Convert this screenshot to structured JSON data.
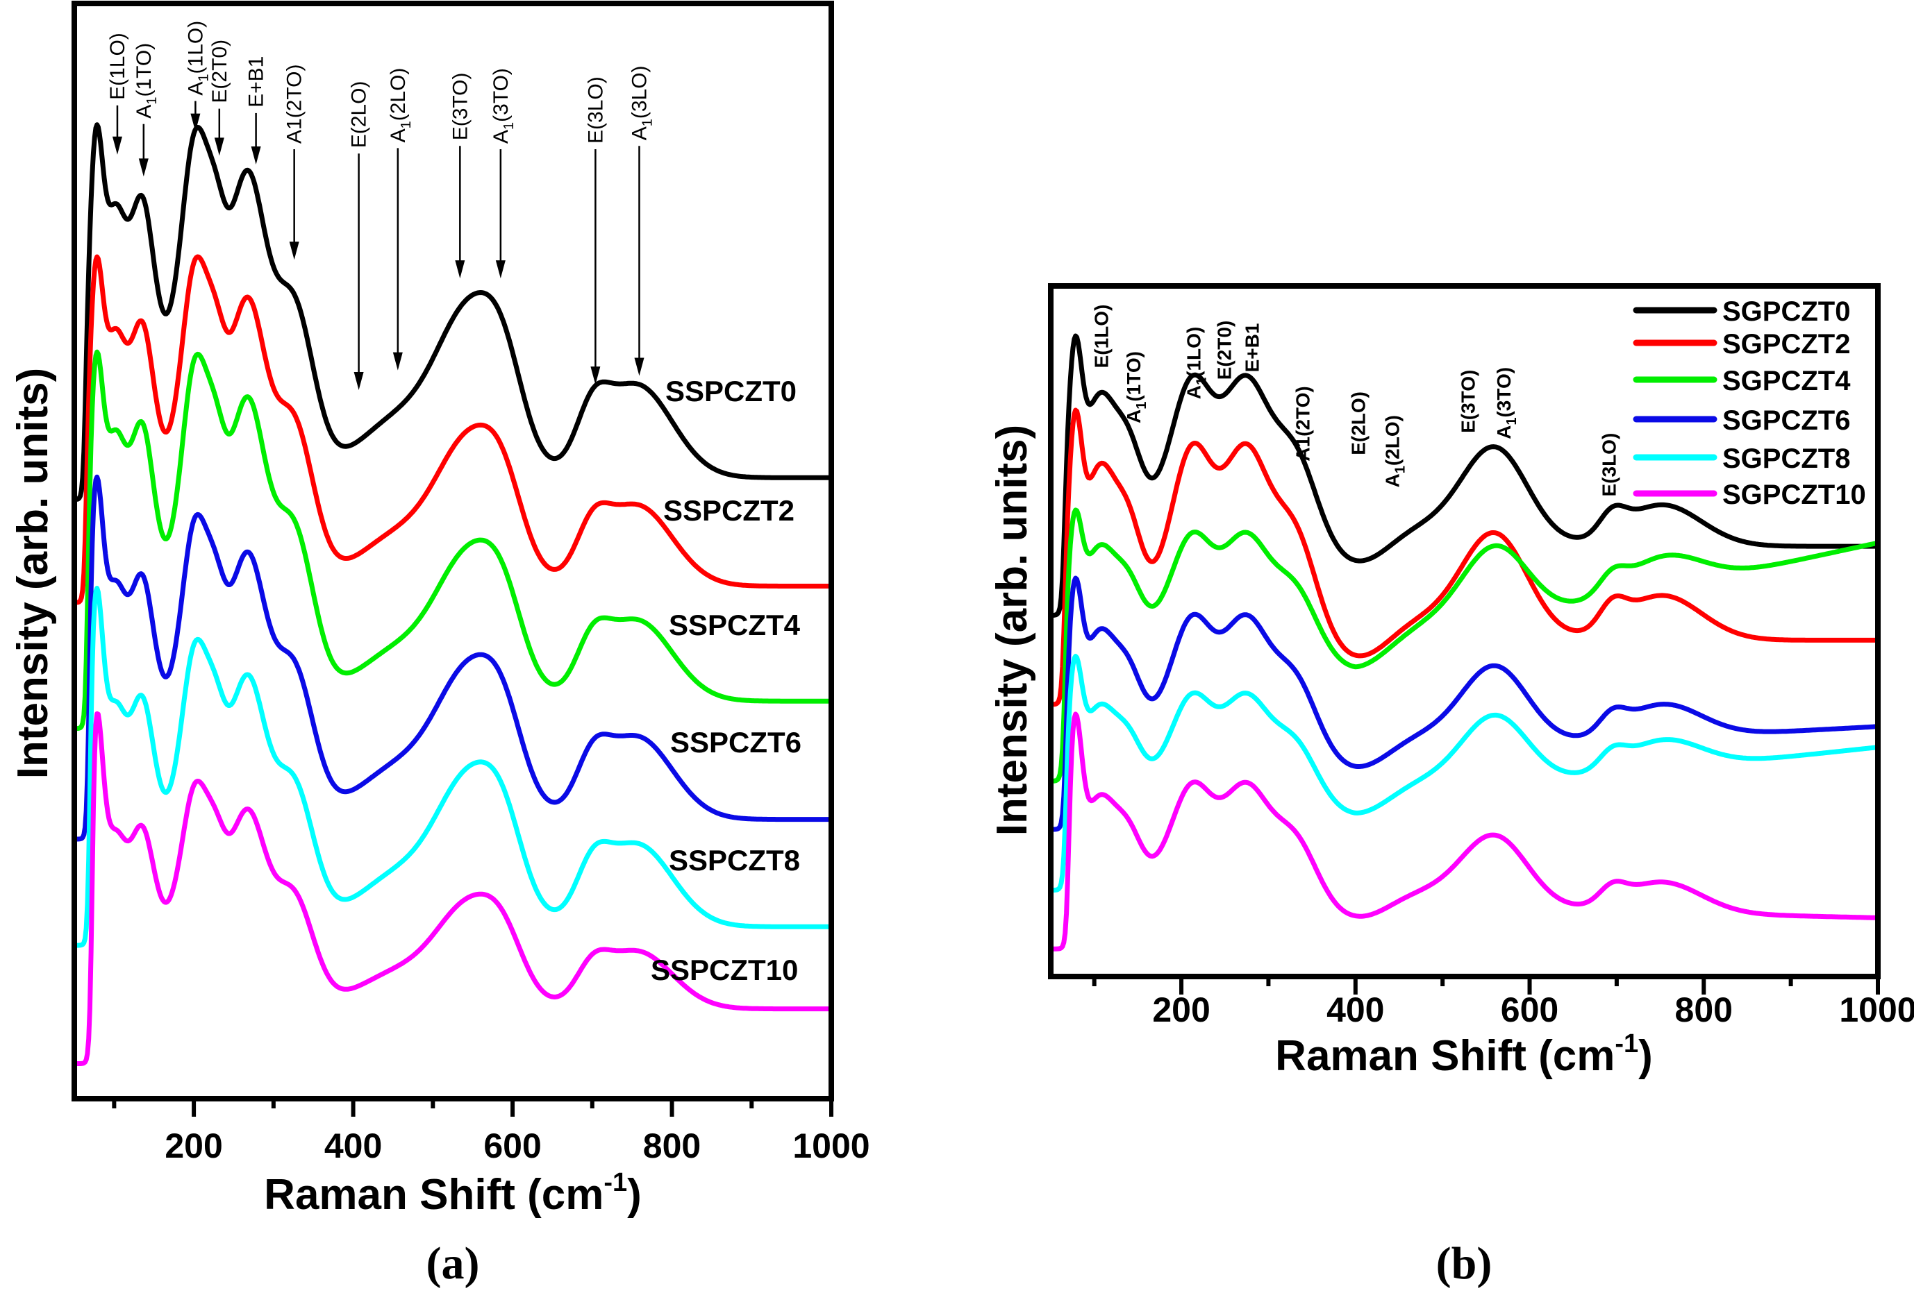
{
  "figure": {
    "panel_labels": [
      "(a)",
      "(b)"
    ]
  },
  "chart_data": [
    {
      "id": "a",
      "type": "line",
      "title": "",
      "panel_label": "(a)",
      "xlabel": "Raman Shift (cm",
      "xlabel_sup": "-1",
      "xlabel_close": ")",
      "ylabel": "Intensity (arb. units)",
      "xlim": [
        50,
        1000
      ],
      "ylim": [
        0,
        100
      ],
      "x_major_ticks": [
        200,
        400,
        600,
        800,
        1000
      ],
      "x_minor_ticks": [
        100,
        300,
        500,
        700,
        900
      ],
      "x_tick_labels": [
        "200",
        "400",
        "600",
        "800",
        "1000"
      ],
      "y_ticks": [],
      "grid": false,
      "legend": "inline-right",
      "model": "offset + sum of gaussian components (center, width, amplitude in arb. units), stacked spectra",
      "components": [
        {
          "center": 76,
          "width": 9,
          "amp": 23,
          "group": "sharp"
        },
        {
          "center": 100,
          "width": 15,
          "amp": 18,
          "group": "low"
        },
        {
          "center": 135,
          "width": 14,
          "amp": 15,
          "group": "low"
        },
        {
          "center": 190,
          "width": 70,
          "amp": 13,
          "group": "low"
        },
        {
          "center": 202,
          "width": 16,
          "amp": 18,
          "group": "low"
        },
        {
          "center": 228,
          "width": 12,
          "amp": 8,
          "group": "low"
        },
        {
          "center": 268,
          "width": 22,
          "amp": 20,
          "group": "low"
        },
        {
          "center": 325,
          "width": 25,
          "amp": 14,
          "group": "low"
        },
        {
          "center": 455,
          "width": 50,
          "amp": 5,
          "group": "high"
        },
        {
          "center": 548,
          "width": 42,
          "amp": 14.5,
          "group": "high"
        },
        {
          "center": 590,
          "width": 25,
          "amp": 5,
          "group": "high"
        },
        {
          "center": 700,
          "width": 20,
          "amp": 4,
          "group": "high"
        },
        {
          "center": 755,
          "width": 45,
          "amp": 8.5,
          "group": "high"
        }
      ],
      "series": [
        {
          "name": "SSPCZT0",
          "color": "#000000",
          "offset": 56.7,
          "edge": 63,
          "pre_edge": -2.0,
          "tilt": 0,
          "scales": {
            "sharp": 1.0,
            "low": 1.0,
            "high": 1.0
          }
        },
        {
          "name": "SSPCZT2",
          "color": "#ff0000",
          "offset": 46.8,
          "edge": 64,
          "pre_edge": -1.5,
          "tilt": 0,
          "scales": {
            "sharp": 0.93,
            "low": 0.94,
            "high": 0.87
          }
        },
        {
          "name": "SSPCZT4",
          "color": "#00ee00",
          "offset": 36.3,
          "edge": 66,
          "pre_edge": -2.5,
          "tilt": 0,
          "scales": {
            "sharp": 0.99,
            "low": 0.99,
            "high": 0.87
          }
        },
        {
          "name": "SSPCZT6",
          "color": "#0a0ae6",
          "offset": 25.5,
          "edge": 68,
          "pre_edge": -1.8,
          "tilt": 0,
          "scales": {
            "sharp": 1.02,
            "low": 0.87,
            "high": 0.89
          }
        },
        {
          "name": "SSPCZT8",
          "color": "#00ffff",
          "offset": 15.7,
          "edge": 69,
          "pre_edge": -1.7,
          "tilt": 0,
          "scales": {
            "sharp": 1.03,
            "low": 0.82,
            "high": 0.89
          }
        },
        {
          "name": "SSPCZT10",
          "color": "#ff00ff",
          "offset": 8.2,
          "edge": 72,
          "pre_edge": -5.0,
          "tilt": 0,
          "scales": {
            "sharp": 0.96,
            "low": 0.65,
            "high": 0.62
          }
        }
      ],
      "annotations": [
        {
          "main": "E",
          "sub": "",
          "rest": "(1LO)",
          "x": 104,
          "text_y": 91.2,
          "arrow_to": 86.2
        },
        {
          "main": "A",
          "sub": "1",
          "rest": "(1TO)",
          "x": 137,
          "text_y": 89.5,
          "arrow_to": 84.2
        },
        {
          "main": "A",
          "sub": "1",
          "rest": "(1LO)",
          "x": 202,
          "text_y": 91.6,
          "arrow_to": 88.3
        },
        {
          "main": "E",
          "sub": "",
          "rest": "(2T0)",
          "x": 232,
          "text_y": 90.9,
          "arrow_to": 86.1
        },
        {
          "main": "E+B1",
          "sub": "",
          "rest": "",
          "x": 278,
          "text_y": 90.5,
          "arrow_to": 85.3
        },
        {
          "main": "A1(2TO)",
          "sub": "",
          "rest": "",
          "x": 326,
          "text_y": 87.2,
          "arrow_to": 76.6
        },
        {
          "main": "E",
          "sub": "",
          "rest": "(2LO)",
          "x": 407,
          "text_y": 86.8,
          "arrow_to": 64.7
        },
        {
          "main": "A",
          "sub": "1",
          "rest": "(2LO)",
          "x": 456,
          "text_y": 87.3,
          "arrow_to": 66.5
        },
        {
          "main": "E",
          "sub": "",
          "rest": "(3TO)",
          "x": 534,
          "text_y": 87.5,
          "arrow_to": 74.9
        },
        {
          "main": "A",
          "sub": "1",
          "rest": "(3TO)",
          "x": 585,
          "text_y": 87.2,
          "arrow_to": 74.9
        },
        {
          "main": "E",
          "sub": "",
          "rest": "(3LO)",
          "x": 704,
          "text_y": 87.2,
          "arrow_to": 65.2
        },
        {
          "main": "A",
          "sub": "1",
          "rest": "(3LO)",
          "x": 759,
          "text_y": 87.5,
          "arrow_to": 66.0
        }
      ]
    },
    {
      "id": "b",
      "type": "line",
      "title": "",
      "panel_label": "(b)",
      "xlabel": "Raman Shift (cm",
      "xlabel_sup": "-1",
      "xlabel_close": ")",
      "ylabel": "Intensity (arb. units)",
      "xlim": [
        50,
        1000
      ],
      "ylim": [
        0,
        100
      ],
      "x_major_ticks": [
        200,
        400,
        600,
        800,
        1000
      ],
      "x_minor_ticks": [
        100,
        300,
        500,
        700,
        900
      ],
      "x_tick_labels": [
        "200",
        "400",
        "600",
        "800",
        "1000"
      ],
      "y_ticks": [],
      "grid": false,
      "legend": "top-right",
      "model": "offset + sum of gaussian components (center, width, amplitude in arb. units) + linear tilt above 400 cm-1",
      "components": [
        {
          "center": 77,
          "width": 8,
          "amp": 22,
          "group": "sharp"
        },
        {
          "center": 105,
          "width": 20,
          "amp": 20,
          "group": "low"
        },
        {
          "center": 140,
          "width": 15,
          "amp": 9,
          "group": "low"
        },
        {
          "center": 220,
          "width": 60,
          "amp": 9,
          "group": "low"
        },
        {
          "center": 212,
          "width": 22,
          "amp": 15,
          "group": "low"
        },
        {
          "center": 275,
          "width": 25,
          "amp": 17.5,
          "group": "low"
        },
        {
          "center": 330,
          "width": 25,
          "amp": 12,
          "group": "low"
        },
        {
          "center": 410,
          "width": 35,
          "amp": -4,
          "group": "high"
        },
        {
          "center": 460,
          "width": 50,
          "amp": 3,
          "group": "high"
        },
        {
          "center": 560,
          "width": 38,
          "amp": 14,
          "group": "high"
        },
        {
          "center": 695,
          "width": 15,
          "amp": 3,
          "group": "high"
        },
        {
          "center": 752,
          "width": 45,
          "amp": 6,
          "group": "high"
        }
      ],
      "tilt_from": 400,
      "series": [
        {
          "name": "SGPCZT0",
          "color": "#000000",
          "offset": 62.3,
          "edge": 65,
          "pre_edge": -10.0,
          "tilt": 0,
          "scales": {
            "sharp": 1.0,
            "low": 1.0,
            "high": 1.0
          }
        },
        {
          "name": "SGPCZT2",
          "color": "#ff0000",
          "offset": 48.7,
          "edge": 65,
          "pre_edge": -9.3,
          "tilt": 0,
          "scales": {
            "sharp": 1.07,
            "low": 1.15,
            "high": 1.08
          }
        },
        {
          "name": "SGPCZT4",
          "color": "#00ee00",
          "offset": 46.5,
          "edge": 66,
          "pre_edge": -18.2,
          "tilt": 16.3,
          "scales": {
            "sharp": 0.68,
            "low": 0.72,
            "high": 0.8
          }
        },
        {
          "name": "SGPCZT6",
          "color": "#0a0ae6",
          "offset": 32.1,
          "edge": 67,
          "pre_edge": -10.8,
          "tilt": 4.1,
          "scales": {
            "sharp": 0.85,
            "low": 0.82,
            "high": 0.82
          }
        },
        {
          "name": "SGPCZT8",
          "color": "#00ffff",
          "offset": 25.2,
          "edge": 67,
          "pre_edge": -12.7,
          "tilt": 8.0,
          "scales": {
            "sharp": 0.72,
            "low": 0.64,
            "high": 0.73
          }
        },
        {
          "name": "SGPCZT10",
          "color": "#ff00ff",
          "offset": 10.3,
          "edge": 70,
          "pre_edge": -6.3,
          "tilt": -1.8,
          "scales": {
            "sharp": 1.0,
            "low": 0.72,
            "high": 0.74
          }
        }
      ],
      "annotations": [
        {
          "main": "E",
          "sub": "",
          "rest": "(1LO)",
          "x": 108,
          "text_y": 88.1
        },
        {
          "main": "A",
          "sub": "1",
          "rest": "(1TO)",
          "x": 145,
          "text_y": 80.1
        },
        {
          "main": "A",
          "sub": "1",
          "rest": "(1LO)",
          "x": 214,
          "text_y": 83.6
        },
        {
          "main": "E",
          "sub": "",
          "rest": "(2T0)",
          "x": 249,
          "text_y": 86.4
        },
        {
          "main": "E+B1",
          "sub": "",
          "rest": "",
          "x": 281,
          "text_y": 87.5
        },
        {
          "main": "A1(2TO)",
          "sub": "",
          "rest": "",
          "x": 339,
          "text_y": 74.6
        },
        {
          "main": "E",
          "sub": "",
          "rest": "(2LO)",
          "x": 403,
          "text_y": 75.5
        },
        {
          "main": "A",
          "sub": "1",
          "rest": "(2LO)",
          "x": 442,
          "text_y": 70.8
        },
        {
          "main": "E",
          "sub": "",
          "rest": "(3TO)",
          "x": 529,
          "text_y": 78.7
        },
        {
          "main": "A",
          "sub": "1",
          "rest": "(3TO)",
          "x": 570,
          "text_y": 77.8
        },
        {
          "main": "E",
          "sub": "",
          "rest": "(3LO)",
          "x": 691,
          "text_y": 69.5
        }
      ]
    }
  ]
}
